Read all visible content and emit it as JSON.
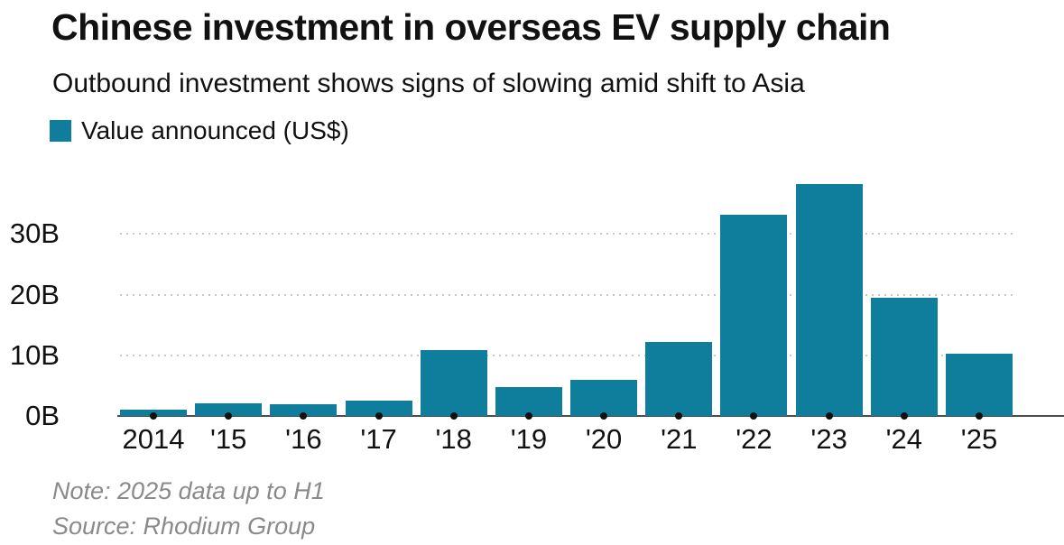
{
  "header": {
    "title": "Chinese investment in overseas EV supply chain",
    "subtitle": "Outbound investment shows signs of slowing amid shift to Asia",
    "legend": {
      "label": "Value announced (US$)",
      "swatch_color": "#0f7e9d"
    }
  },
  "chart_data": {
    "type": "bar",
    "title": "Chinese investment in overseas EV supply chain",
    "subtitle": "Outbound investment shows signs of slowing amid shift to Asia",
    "legend_entries": [
      "Value announced (US$)"
    ],
    "legend_position": "top-left",
    "categories": [
      "2014",
      "'15",
      "'16",
      "'17",
      "'18",
      "'19",
      "'20",
      "'21",
      "'22",
      "'23",
      "'24",
      "'25"
    ],
    "values": [
      1.1,
      2.1,
      2.0,
      2.5,
      10.8,
      4.8,
      5.9,
      12.2,
      33.2,
      38.2,
      19.5,
      10.3
    ],
    "unit": "billions US$",
    "xlabel": "",
    "ylabel": "",
    "ylim": [
      0,
      40
    ],
    "yticks": [
      {
        "value": 0,
        "label": "0B"
      },
      {
        "value": 10,
        "label": "10B"
      },
      {
        "value": 20,
        "label": "20B"
      },
      {
        "value": 30,
        "label": "30B"
      }
    ],
    "grid": "horizontal dotted",
    "bar_color": "#0f7e9d",
    "gridline_color": "#c8c8c8",
    "axis_color": "#4d4d4d",
    "tick_dot_color": "#111111"
  },
  "footer": {
    "note": "Note: 2025 data up to H1",
    "source": "Source: Rhodium Group"
  }
}
